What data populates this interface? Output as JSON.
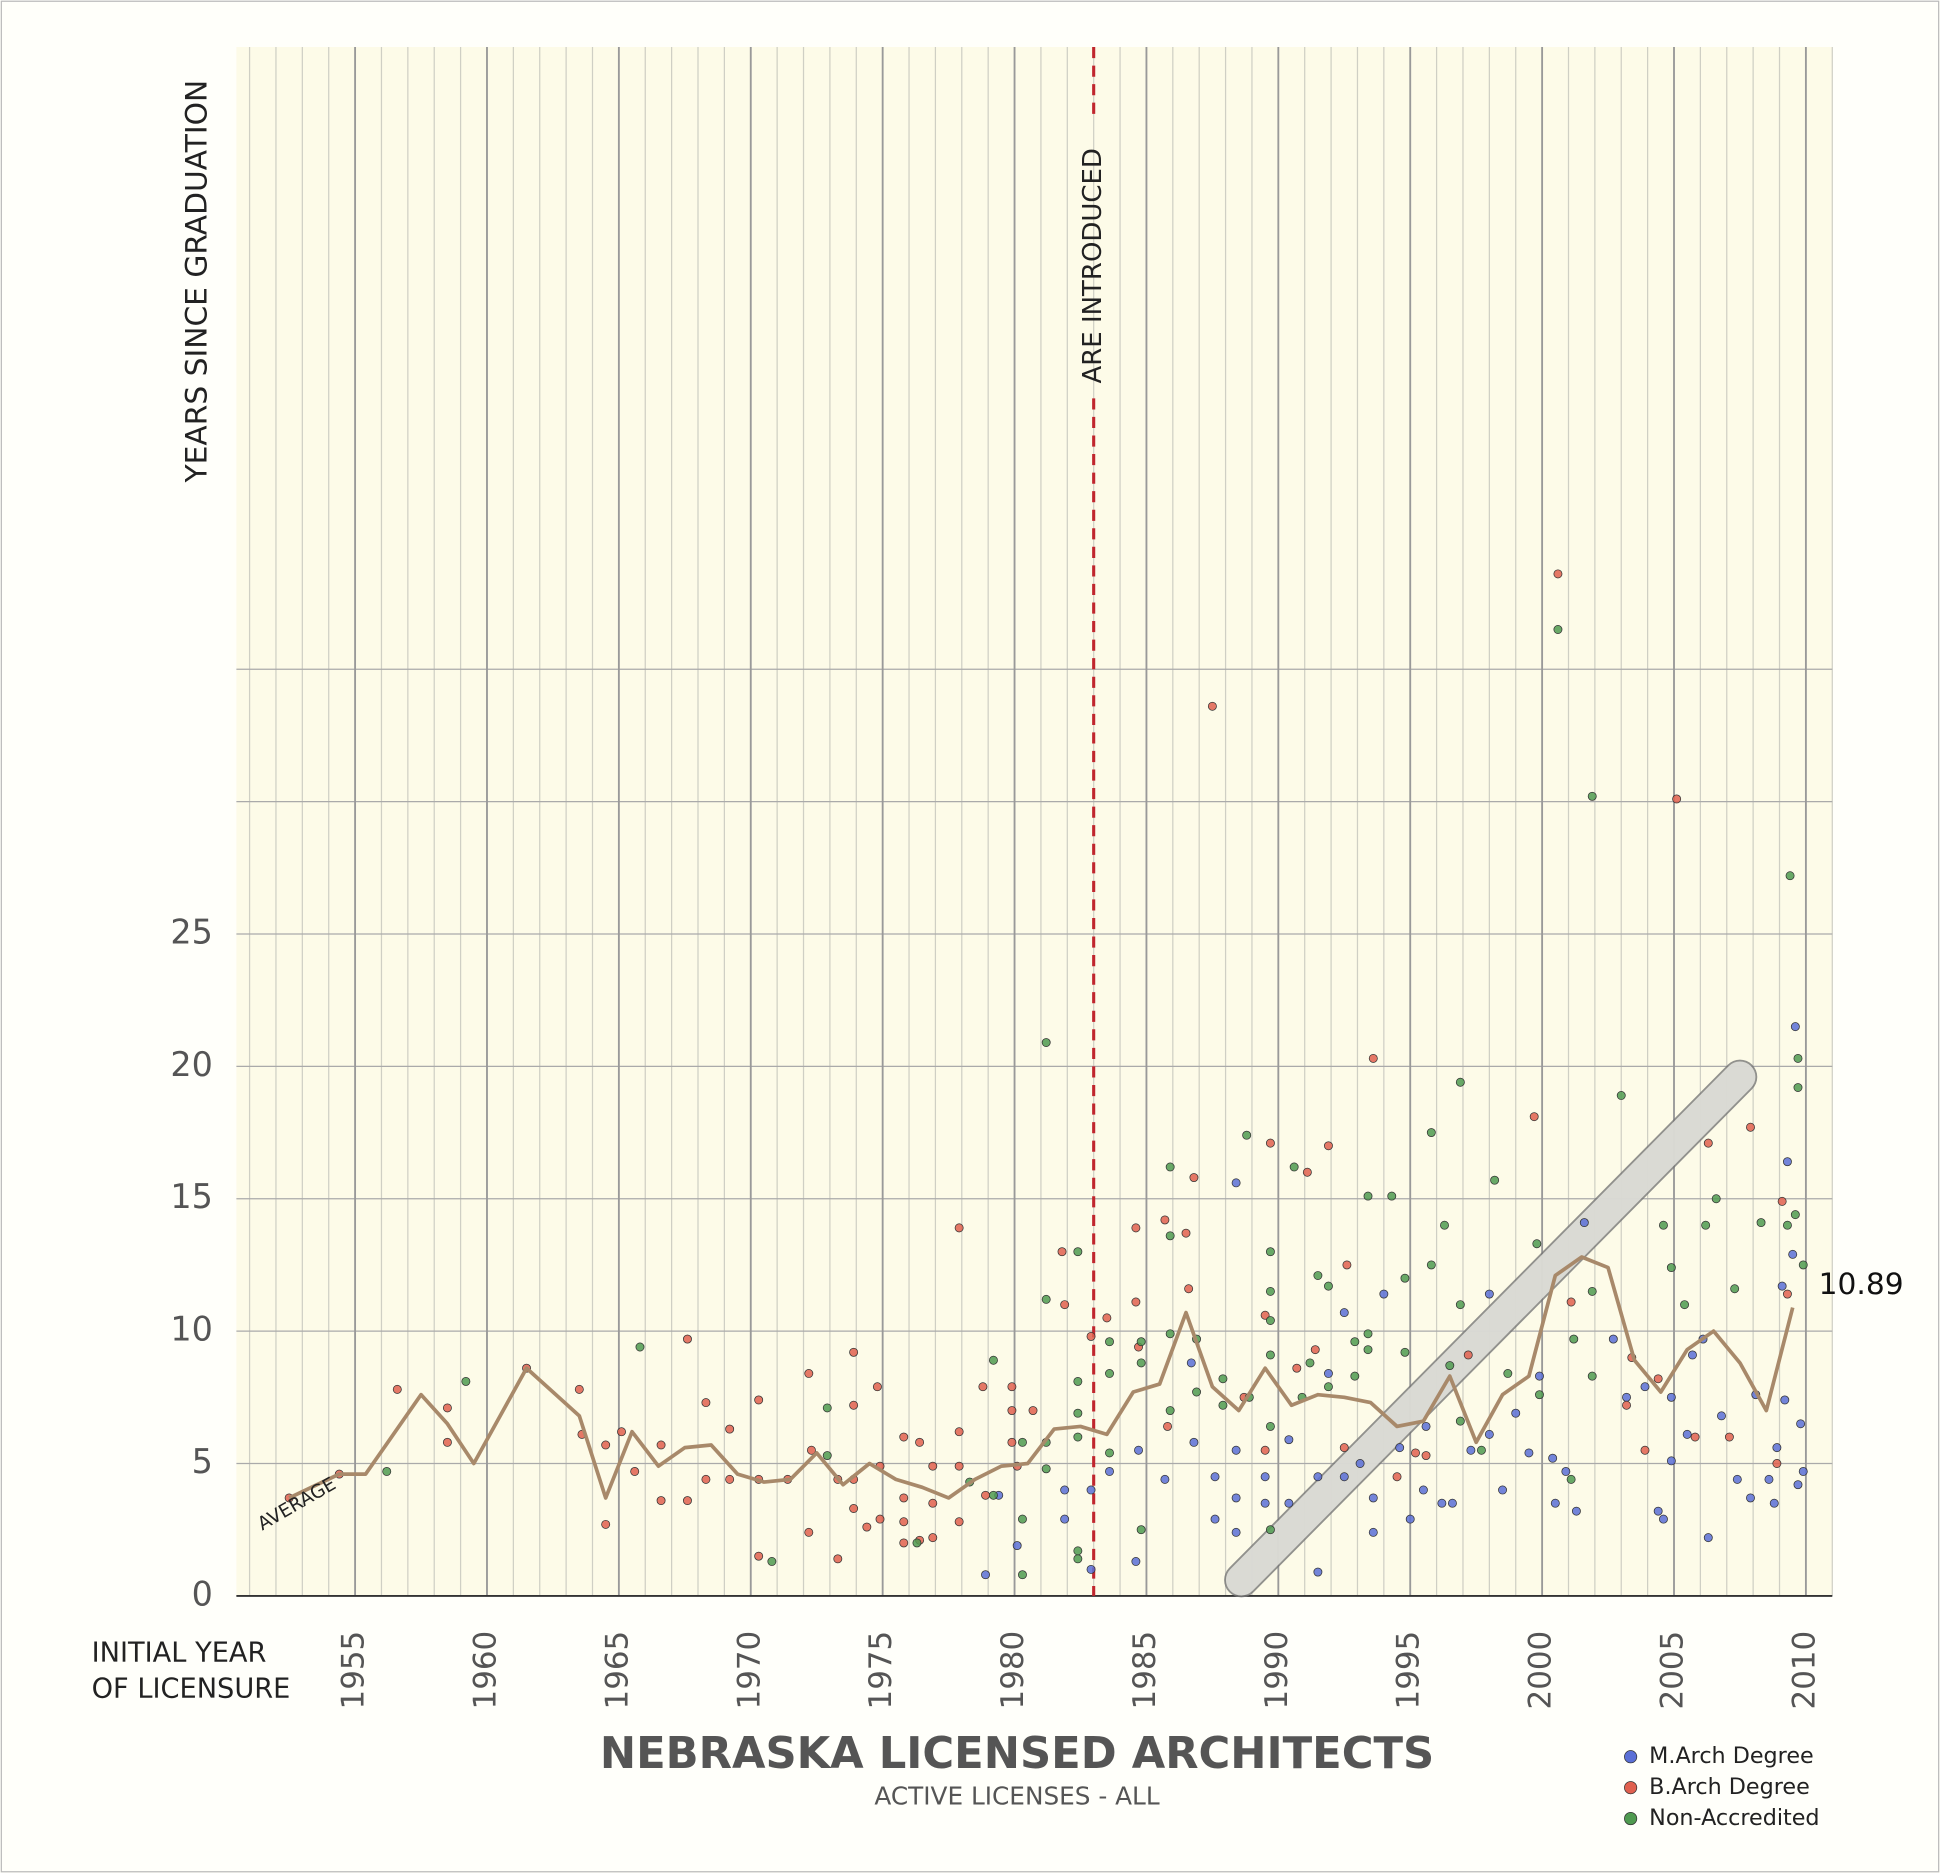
{
  "chart_data": {
    "type": "scatter",
    "title": "NEBRASKA LICENSED ARCHITECTS",
    "subtitle": "ACTIVE LICENSES - ALL",
    "y_label": "YEARS SINCE GRADUATION",
    "x_label": [
      "INITIAL YEAR",
      "OF LICENSURE"
    ],
    "xlim": [
      1950.5,
      2011
    ],
    "xticks": [
      1955,
      1960,
      1965,
      1970,
      1975,
      1980,
      1985,
      1990,
      1995,
      2000,
      2005,
      2010
    ],
    "ylim": [
      0,
      58.5
    ],
    "yticks": [
      0,
      5,
      10,
      15,
      20,
      25
    ],
    "y_gridlines": [
      0,
      5,
      10,
      15,
      20,
      25,
      30,
      35
    ],
    "grid": true,
    "legend": "bottom-right",
    "reference_line": {
      "x": 1983,
      "label": "ARE INTRODUCED",
      "color": "#c0262d"
    },
    "trend_band": {
      "x": [
        1988.6,
        2007.5
      ],
      "y": [
        0.6,
        19.6
      ]
    },
    "average": {
      "label": "AVERAGE",
      "color": "#a8896a",
      "x": [
        1952.5,
        1954.4,
        1955.4,
        1957.5,
        1958.5,
        1959.5,
        1961.5,
        1963.5,
        1964.5,
        1965.5,
        1966.5,
        1967.5,
        1968.5,
        1969.5,
        1970.5,
        1971.5,
        1972.5,
        1973.5,
        1974.5,
        1975.5,
        1976.5,
        1977.5,
        1978.5,
        1979.5,
        1980.5,
        1981.5,
        1982.5,
        1983.5,
        1984.5,
        1985.5,
        1986.5,
        1987.5,
        1988.5,
        1989.5,
        1990.5,
        1991.5,
        1992.5,
        1993.5,
        1994.5,
        1995.5,
        1996.5,
        1997.5,
        1998.5,
        1999.5,
        2000.5,
        2001.5,
        2002.5,
        2003.5,
        2004.5,
        2005.5,
        2006.5,
        2007.5,
        2008.5,
        2009.5
      ],
      "y": [
        3.7,
        4.6,
        4.6,
        7.6,
        6.5,
        5.0,
        8.6,
        6.8,
        3.7,
        6.2,
        4.9,
        5.6,
        5.7,
        4.6,
        4.3,
        4.4,
        5.4,
        4.2,
        5.0,
        4.4,
        4.1,
        3.7,
        4.4,
        4.9,
        5.0,
        6.3,
        6.4,
        6.1,
        7.7,
        8.0,
        10.7,
        7.9,
        7.0,
        8.6,
        7.2,
        7.6,
        7.5,
        7.3,
        6.4,
        6.6,
        8.3,
        5.8,
        7.6,
        8.3,
        12.1,
        12.8,
        12.4,
        8.9,
        7.7,
        9.3,
        10.0,
        8.8,
        7.0,
        10.89
      ]
    },
    "series": [
      {
        "name": "M.Arch Degree",
        "color": "#5a6fd6",
        "x": [
          1980.1,
          1978.9,
          1979.4,
          1981.9,
          1981.9,
          1982.9,
          1982.9,
          1983.6,
          1984.6,
          1984.7,
          1985.7,
          1986.7,
          1986.8,
          1987.6,
          1987.6,
          1988.4,
          1988.4,
          1988.4,
          1988.4,
          1989.5,
          1989.5,
          1990.4,
          1990.4,
          1991.5,
          1991.5,
          1991.9,
          1992.5,
          1992.5,
          1993.1,
          1993.6,
          1994,
          1993.6,
          1994.6,
          1995,
          1995.5,
          1995.6,
          1996.2,
          1996.6,
          1997.3,
          1998,
          1998,
          1998.5,
          1999,
          1999.5,
          1999.9,
          2000.4,
          2000.5,
          2000.9,
          2001.3,
          2001.6,
          2002.7,
          2003.2,
          2003.9,
          2004.4,
          2004.6,
          2004.9,
          2004.9,
          2005.5,
          2005.7,
          2006.1,
          2006.3,
          2006.8,
          2007.4,
          2007.9,
          2008.1,
          2008.6,
          2008.8,
          2008.9,
          2009.1,
          2009.2,
          2009.3,
          2009.5,
          2009.6,
          2009.7,
          2009.8,
          2009.9
        ],
        "y": [
          1.9,
          0.8,
          3.8,
          4.0,
          2.9,
          4.0,
          1.0,
          4.7,
          1.3,
          5.5,
          4.4,
          8.8,
          5.8,
          4.5,
          2.9,
          15.6,
          5.5,
          2.4,
          3.7,
          4.5,
          3.5,
          5.9,
          3.5,
          0.9,
          4.5,
          8.4,
          10.7,
          4.5,
          5.0,
          2.4,
          11.4,
          3.7,
          5.6,
          2.9,
          4.0,
          6.4,
          3.5,
          3.5,
          5.5,
          11.4,
          6.1,
          4.0,
          6.9,
          5.4,
          8.3,
          5.2,
          3.5,
          4.7,
          3.2,
          14.1,
          9.7,
          7.5,
          7.9,
          3.2,
          2.9,
          7.5,
          5.1,
          6.1,
          9.1,
          9.7,
          2.2,
          6.8,
          4.4,
          3.7,
          7.6,
          4.4,
          3.5,
          5.6,
          11.7,
          7.4,
          16.4,
          12.9,
          21.5,
          4.2,
          6.5,
          4.7
        ]
      },
      {
        "name": "B.Arch Degree",
        "color": "#e0604f",
        "x": [
          1952.5,
          1954.4,
          1956.6,
          1958.5,
          1958.5,
          1961.5,
          1963.5,
          1963.6,
          1964.5,
          1964.5,
          1965.1,
          1965.6,
          1966.6,
          1966.6,
          1967.6,
          1967.6,
          1968.3,
          1968.3,
          1969.2,
          1969.2,
          1970.3,
          1970.3,
          1970.3,
          1971.4,
          1972.2,
          1972.2,
          1972.3,
          1973.3,
          1973.3,
          1973.9,
          1973.9,
          1973.9,
          1973.9,
          1974.4,
          1974.8,
          1974.9,
          1974.9,
          1975.8,
          1975.8,
          1975.8,
          1975.8,
          1976.4,
          1976.4,
          1976.9,
          1976.9,
          1976.9,
          1977.9,
          1977.9,
          1977.9,
          1977.9,
          1978.8,
          1978.9,
          1979.9,
          1979.9,
          1979.9,
          1980.1,
          1980.7,
          1981.8,
          1981.9,
          1982.9,
          1983.5,
          1984.6,
          1984.6,
          1984.7,
          1985.7,
          1985.8,
          1986.5,
          1986.6,
          1986.8,
          1987.5,
          1988.7,
          1989.5,
          1989.5,
          1989.7,
          1990.7,
          1991.1,
          1991.4,
          1991.9,
          1992.5,
          1992.6,
          1993.6,
          1994.5,
          1995.2,
          1995.6,
          1997.2,
          1999.7,
          2000.6,
          2001.1,
          2003.2,
          2003.4,
          2003.9,
          2004.4,
          2005.1,
          2005.8,
          2006.3,
          2007.1,
          2007.9,
          2008.9,
          2009.1,
          2009.3
        ],
        "y": [
          3.7,
          4.6,
          7.8,
          7.1,
          5.8,
          8.6,
          7.8,
          6.1,
          5.7,
          2.7,
          6.2,
          4.7,
          3.6,
          5.7,
          9.7,
          3.6,
          7.3,
          4.4,
          6.3,
          4.4,
          7.4,
          1.5,
          4.4,
          4.4,
          8.4,
          2.4,
          5.5,
          1.4,
          4.4,
          9.2,
          7.2,
          4.4,
          3.3,
          2.6,
          7.9,
          2.9,
          4.9,
          6.0,
          2.0,
          3.7,
          2.8,
          2.1,
          5.8,
          4.9,
          3.5,
          2.2,
          13.9,
          6.2,
          2.8,
          4.9,
          7.9,
          3.8,
          7.9,
          7.0,
          5.8,
          4.9,
          7.0,
          13.0,
          11.0,
          9.8,
          10.5,
          13.9,
          11.1,
          9.4,
          14.2,
          6.4,
          13.7,
          11.6,
          15.8,
          33.6,
          7.5,
          10.6,
          5.5,
          17.1,
          8.6,
          16.0,
          9.3,
          17.0,
          5.6,
          12.5,
          20.3,
          4.5,
          5.4,
          5.3,
          9.1,
          18.1,
          38.6,
          11.1,
          7.2,
          9.0,
          5.5,
          8.2,
          30.1,
          6.0,
          17.1,
          6.0,
          17.7,
          5.0,
          14.9,
          11.4
        ]
      },
      {
        "name": "Non-Accredited",
        "color": "#4f9a50",
        "x": [
          1956.2,
          1959.2,
          1965.8,
          1970.8,
          1972.9,
          1972.9,
          1976.3,
          1978.3,
          1979.2,
          1979.2,
          1980.3,
          1980.3,
          1980.3,
          1981.2,
          1981.2,
          1981.2,
          1981.2,
          1982.4,
          1982.4,
          1982.4,
          1982.4,
          1982.4,
          1982.4,
          1983.6,
          1983.6,
          1983.6,
          1984.8,
          1984.8,
          1984.8,
          1985.9,
          1985.9,
          1985.9,
          1985.9,
          1986.9,
          1986.9,
          1987.9,
          1987.9,
          1988.8,
          1988.9,
          1989.7,
          1989.7,
          1989.7,
          1989.7,
          1989.7,
          1989.7,
          1990.6,
          1990.9,
          1991.2,
          1991.5,
          1991.9,
          1991.9,
          1992.9,
          1992.9,
          1993.4,
          1993.4,
          1993.4,
          1994.3,
          1994.8,
          1994.8,
          1995.8,
          1995.8,
          1996.3,
          1996.5,
          1996.9,
          1996.9,
          1996.9,
          1997.7,
          1998.2,
          1998.7,
          1999.8,
          1999.9,
          2000.6,
          2001.1,
          2001.2,
          2001.9,
          2001.9,
          2001.9,
          2003.0,
          2004.6,
          2004.9,
          2005.4,
          2006.2,
          2006.6,
          2007.3,
          2008.3,
          2009.3,
          2009.4,
          2009.6,
          2009.7,
          2009.7,
          2009.9
        ],
        "y": [
          4.7,
          8.1,
          9.4,
          1.3,
          7.1,
          5.3,
          2.0,
          4.3,
          8.9,
          3.8,
          5.8,
          2.9,
          0.8,
          20.9,
          11.2,
          5.8,
          4.8,
          8.1,
          6.9,
          6.0,
          1.7,
          1.4,
          13.0,
          9.6,
          8.4,
          5.4,
          9.6,
          2.5,
          8.8,
          16.2,
          13.6,
          9.9,
          7.0,
          9.7,
          7.7,
          8.2,
          7.2,
          17.4,
          7.5,
          13.0,
          11.5,
          10.4,
          9.1,
          6.4,
          2.5,
          16.2,
          7.5,
          8.8,
          12.1,
          11.7,
          7.9,
          9.6,
          8.3,
          15.1,
          9.9,
          9.3,
          15.1,
          12.0,
          9.2,
          17.5,
          12.5,
          14.0,
          8.7,
          19.4,
          11.0,
          6.6,
          5.5,
          15.7,
          8.4,
          13.3,
          7.6,
          36.5,
          4.4,
          9.7,
          30.2,
          8.3,
          11.5,
          18.9,
          14.0,
          12.4,
          11.0,
          14.0,
          15.0,
          11.6,
          14.1,
          14.0,
          27.2,
          14.4,
          19.2,
          20.3,
          12.5
        ]
      }
    ]
  }
}
